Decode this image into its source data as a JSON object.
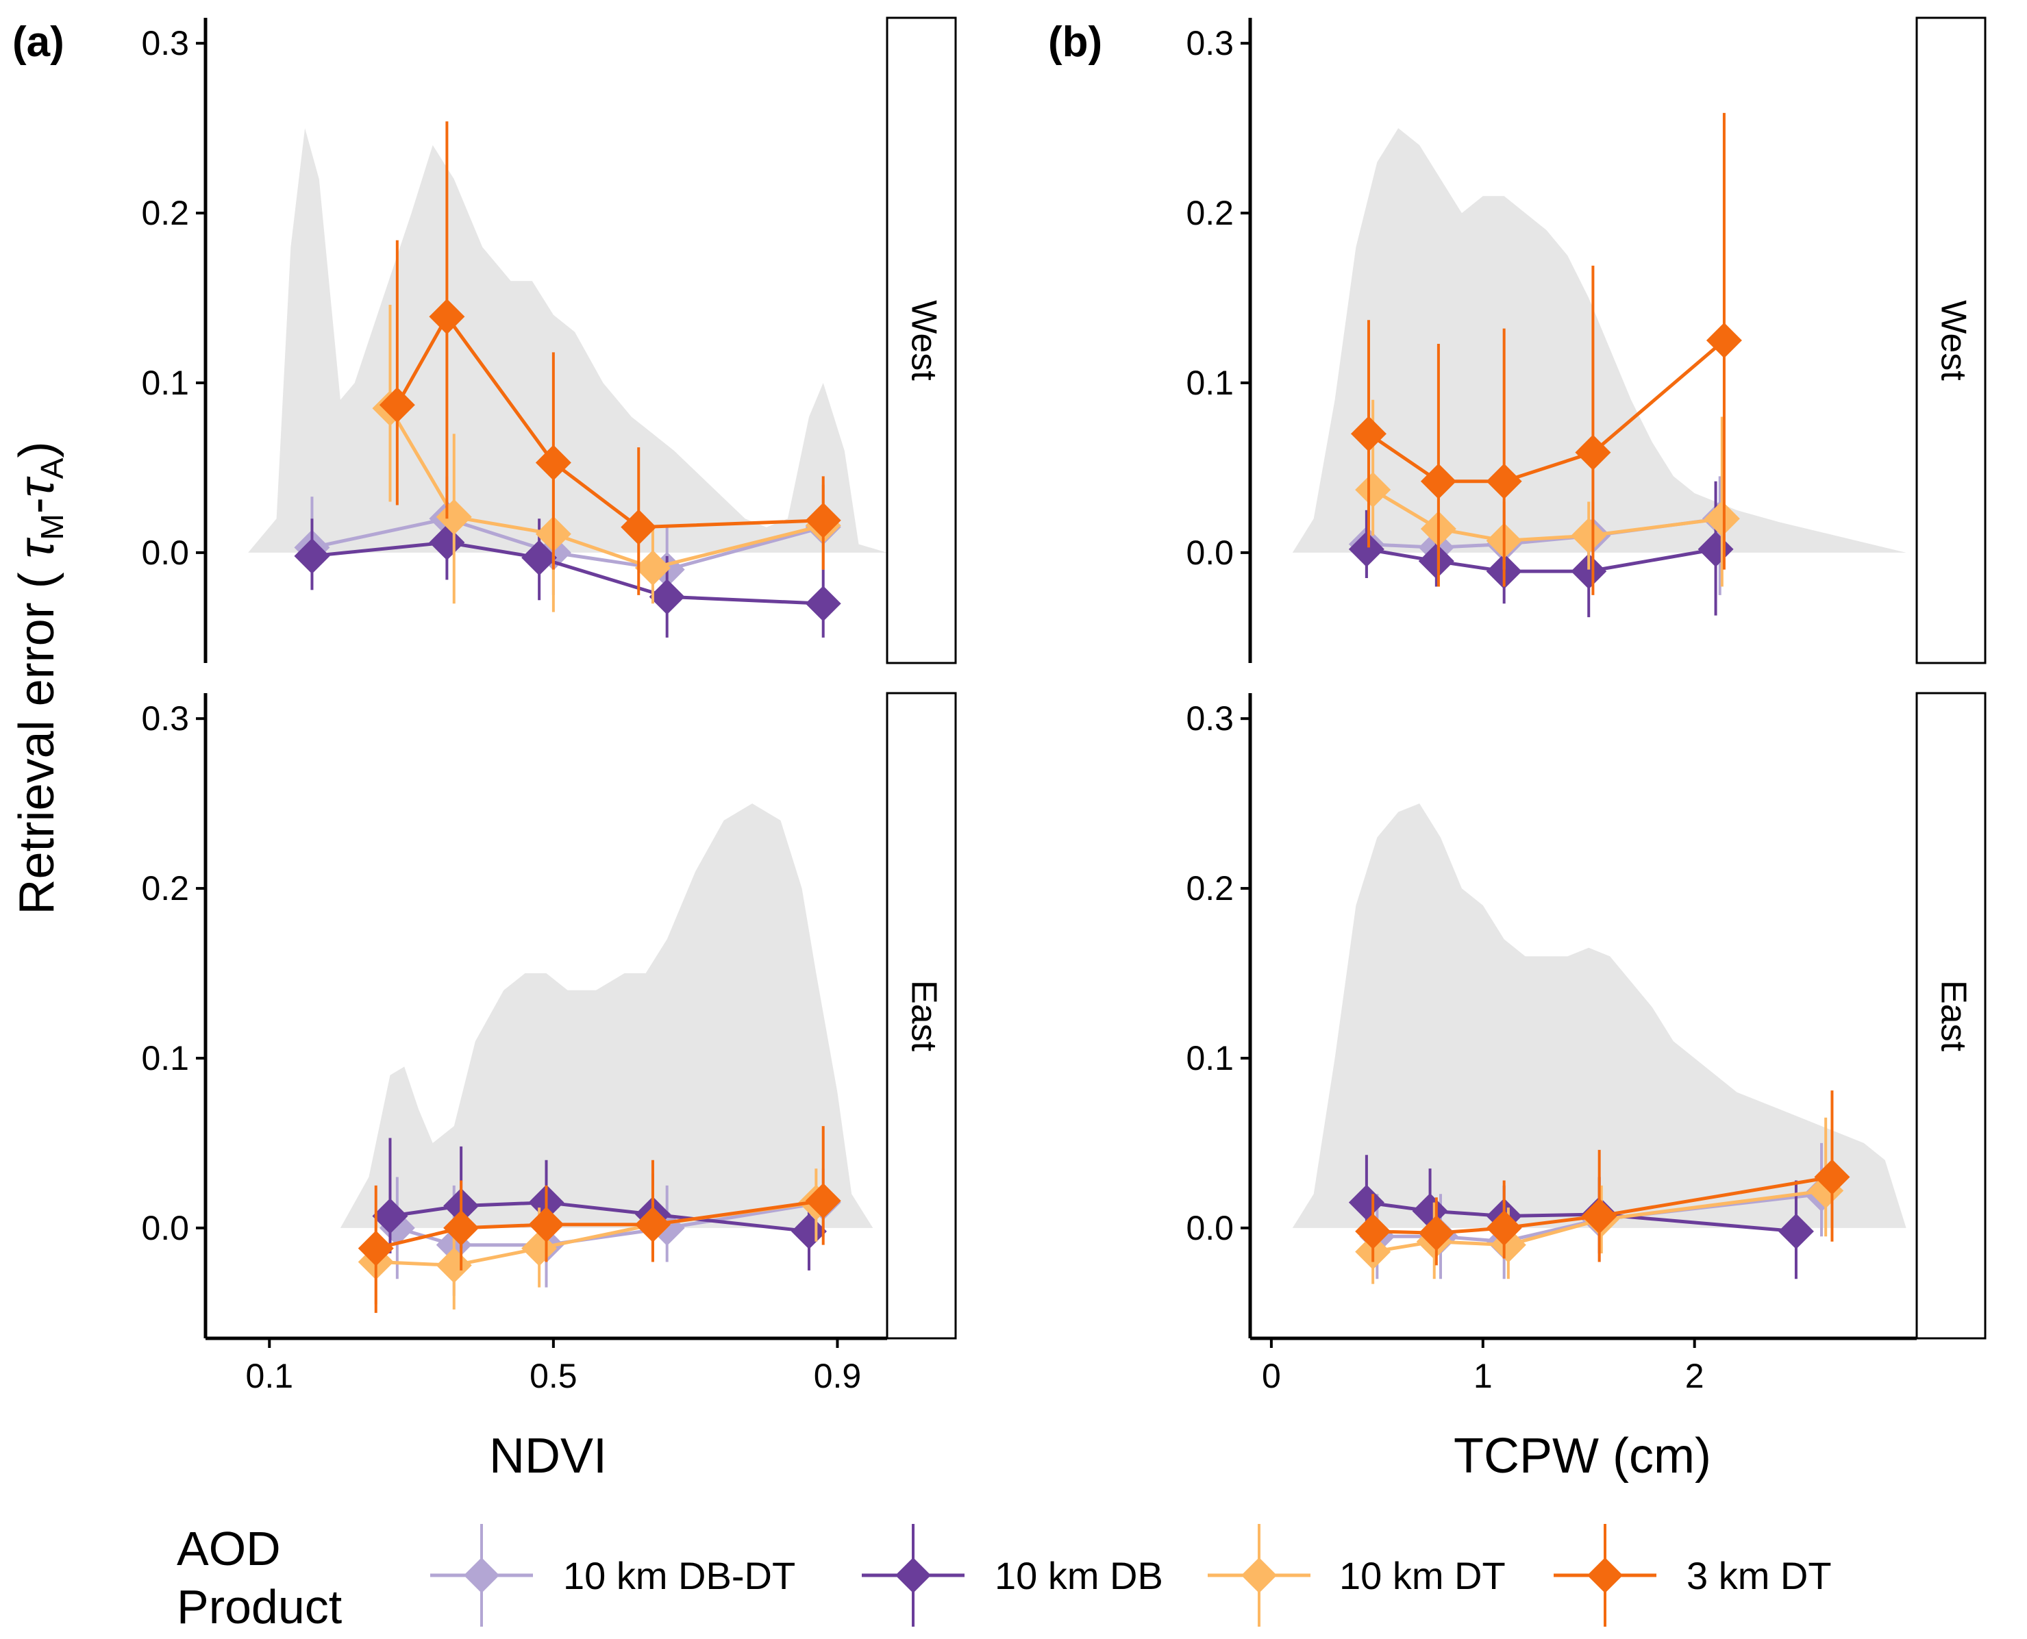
{
  "colors": {
    "series": [
      "#b3a6d4",
      "#6a3d9a",
      "#fdb863",
      "#f46a0e"
    ],
    "density": "#e6e6e6",
    "axis": "#000000"
  },
  "legend": {
    "title_line1": "AOD",
    "title_line2": "Product",
    "items": [
      "10 km DB-DT",
      "10 km DB",
      "10 km DT",
      "3 km DT"
    ],
    "position": "bottom"
  },
  "ylabel": {
    "main": "Retrieval error ( ",
    "tau1": "τ",
    "sub1": "M",
    "dash": "-",
    "tau2": "τ",
    "sub2": "A",
    "close": ")"
  },
  "panels": {
    "a": {
      "letter": "(a)",
      "xlabel": "NDVI",
      "xticks": [
        "0.1",
        "0.5",
        "0.9"
      ]
    },
    "b": {
      "letter": "(b)",
      "xlabel": "TCPW (cm)",
      "xticks": [
        "0",
        "1",
        "2"
      ]
    }
  },
  "strips": {
    "west": "West",
    "east": "East"
  },
  "yticks": [
    "0.0",
    "0.1",
    "0.2",
    "0.3"
  ],
  "chart_data": [
    {
      "type": "line",
      "panel": "a-West",
      "xlabel": "NDVI",
      "ylabel": "Retrieval error ( τM-τA)",
      "xlim": [
        0.01,
        0.97
      ],
      "ylim": [
        -0.065,
        0.315
      ],
      "series": [
        {
          "name": "10 km DB-DT",
          "x": [
            0.16,
            0.35,
            0.5,
            0.66,
            0.88
          ],
          "y": [
            0.003,
            0.02,
            0.0,
            -0.01,
            0.015
          ],
          "ymin": [
            -0.02,
            -0.005,
            -0.025,
            -0.035,
            -0.01
          ],
          "ymax": [
            0.033,
            0.045,
            0.025,
            0.015,
            0.04
          ]
        },
        {
          "name": "10 km DB",
          "x": [
            0.16,
            0.35,
            0.48,
            0.66,
            0.88
          ],
          "y": [
            -0.002,
            0.006,
            -0.003,
            -0.026,
            -0.03
          ],
          "ymin": [
            -0.022,
            -0.016,
            -0.028,
            -0.05,
            -0.05
          ],
          "ymax": [
            0.02,
            0.03,
            0.02,
            -0.002,
            -0.01
          ]
        },
        {
          "name": "10 km DT",
          "x": [
            0.27,
            0.36,
            0.5,
            0.64,
            0.88
          ],
          "y": [
            0.085,
            0.021,
            0.011,
            -0.009,
            0.016
          ],
          "ymin": [
            0.03,
            -0.03,
            -0.035,
            -0.03,
            -0.01
          ],
          "ymax": [
            0.146,
            0.07,
            0.06,
            0.015,
            0.04
          ]
        },
        {
          "name": "3 km DT",
          "x": [
            0.28,
            0.35,
            0.5,
            0.62,
            0.88
          ],
          "y": [
            0.087,
            0.139,
            0.053,
            0.015,
            0.019
          ],
          "ymin": [
            0.028,
            0.02,
            -0.01,
            -0.025,
            -0.01
          ],
          "ymax": [
            0.184,
            0.254,
            0.118,
            0.062,
            0.045
          ]
        }
      ]
    },
    {
      "type": "line",
      "panel": "a-East",
      "xlabel": "NDVI",
      "ylabel": "Retrieval error ( τM-τA)",
      "xlim": [
        0.01,
        0.97
      ],
      "ylim": [
        -0.065,
        0.315
      ],
      "series": [
        {
          "name": "10 km DB-DT",
          "x": [
            0.28,
            0.36,
            0.49,
            0.66,
            0.88
          ],
          "y": [
            0.0,
            -0.01,
            -0.01,
            0.0,
            0.015
          ],
          "ymin": [
            -0.03,
            -0.04,
            -0.035,
            -0.02,
            -0.005
          ],
          "ymax": [
            0.03,
            0.025,
            0.02,
            0.025,
            0.035
          ]
        },
        {
          "name": "10 km DB",
          "x": [
            0.27,
            0.37,
            0.49,
            0.64,
            0.86
          ],
          "y": [
            0.007,
            0.013,
            0.015,
            0.008,
            -0.002
          ],
          "ymin": [
            -0.015,
            -0.012,
            -0.008,
            -0.015,
            -0.025
          ],
          "ymax": [
            0.053,
            0.048,
            0.04,
            0.032,
            0.02
          ]
        },
        {
          "name": "10 km DT",
          "x": [
            0.25,
            0.36,
            0.48,
            0.64,
            0.87
          ],
          "y": [
            -0.02,
            -0.022,
            -0.012,
            0.002,
            0.015
          ],
          "ymin": [
            -0.045,
            -0.048,
            -0.035,
            -0.02,
            -0.008
          ],
          "ymax": [
            0.005,
            0.005,
            0.012,
            0.025,
            0.035
          ]
        },
        {
          "name": "3 km DT",
          "x": [
            0.25,
            0.37,
            0.49,
            0.64,
            0.88
          ],
          "y": [
            -0.012,
            0.0,
            0.002,
            0.002,
            0.016
          ],
          "ymin": [
            -0.05,
            -0.025,
            -0.02,
            -0.02,
            -0.01
          ],
          "ymax": [
            0.025,
            0.028,
            0.025,
            0.04,
            0.06
          ]
        }
      ]
    },
    {
      "type": "line",
      "panel": "b-West",
      "xlabel": "TCPW (cm)",
      "ylabel": "Retrieval error ( τM-τA)",
      "xlim": [
        -0.1,
        3.05
      ],
      "ylim": [
        -0.065,
        0.315
      ],
      "series": [
        {
          "name": "10 km DB-DT",
          "x": [
            0.45,
            0.78,
            1.1,
            1.52,
            2.12
          ],
          "y": [
            0.005,
            0.003,
            0.005,
            0.01,
            0.02
          ],
          "ymin": [
            -0.015,
            -0.015,
            -0.015,
            -0.01,
            -0.025
          ],
          "ymax": [
            0.025,
            0.02,
            0.025,
            0.03,
            0.045
          ]
        },
        {
          "name": "10 km DB",
          "x": [
            0.45,
            0.78,
            1.1,
            1.5,
            2.1
          ],
          "y": [
            0.002,
            -0.005,
            -0.011,
            -0.011,
            0.002
          ],
          "ymin": [
            -0.015,
            -0.02,
            -0.03,
            -0.038,
            -0.037
          ],
          "ymax": [
            0.025,
            0.015,
            0.01,
            0.01,
            0.042
          ]
        },
        {
          "name": "10 km DT",
          "x": [
            0.48,
            0.79,
            1.1,
            1.5,
            2.13
          ],
          "y": [
            0.037,
            0.014,
            0.007,
            0.01,
            0.02
          ],
          "ymin": [
            0.01,
            -0.01,
            -0.01,
            -0.01,
            -0.02
          ],
          "ymax": [
            0.09,
            0.04,
            0.03,
            0.03,
            0.08
          ]
        },
        {
          "name": "3 km DT",
          "x": [
            0.46,
            0.79,
            1.1,
            1.52,
            2.14
          ],
          "y": [
            0.07,
            0.042,
            0.042,
            0.059,
            0.125
          ],
          "ymin": [
            0.003,
            -0.02,
            -0.02,
            -0.025,
            -0.01
          ],
          "ymax": [
            0.137,
            0.123,
            0.132,
            0.169,
            0.259
          ]
        }
      ]
    },
    {
      "type": "line",
      "panel": "b-East",
      "xlabel": "TCPW (cm)",
      "ylabel": "Retrieval error ( τM-τA)",
      "xlim": [
        -0.1,
        3.05
      ],
      "ylim": [
        -0.065,
        0.315
      ],
      "series": [
        {
          "name": "10 km DB-DT",
          "x": [
            0.5,
            0.8,
            1.1,
            1.55,
            2.6
          ],
          "y": [
            -0.005,
            -0.005,
            -0.008,
            0.005,
            0.02
          ],
          "ymin": [
            -0.03,
            -0.03,
            -0.03,
            -0.02,
            -0.005
          ],
          "ymax": [
            0.02,
            0.02,
            0.015,
            0.03,
            0.05
          ]
        },
        {
          "name": "10 km DB",
          "x": [
            0.45,
            0.75,
            1.1,
            1.55,
            2.48
          ],
          "y": [
            0.015,
            0.01,
            0.007,
            0.008,
            -0.002
          ],
          "ymin": [
            -0.008,
            -0.01,
            -0.015,
            -0.015,
            -0.03
          ],
          "ymax": [
            0.043,
            0.035,
            0.025,
            0.03,
            0.028
          ]
        },
        {
          "name": "10 km DT",
          "x": [
            0.48,
            0.77,
            1.12,
            1.56,
            2.62
          ],
          "y": [
            -0.014,
            -0.008,
            -0.01,
            0.005,
            0.022
          ],
          "ymin": [
            -0.033,
            -0.03,
            -0.03,
            -0.015,
            -0.005
          ],
          "ymax": [
            0.005,
            0.015,
            0.012,
            0.025,
            0.065
          ]
        },
        {
          "name": "3 km DT",
          "x": [
            0.48,
            0.78,
            1.1,
            1.55,
            2.65
          ],
          "y": [
            -0.002,
            -0.003,
            0.0,
            0.007,
            0.03
          ],
          "ymin": [
            -0.02,
            -0.022,
            -0.018,
            -0.02,
            -0.008
          ],
          "ymax": [
            0.02,
            0.018,
            0.028,
            0.046,
            0.081
          ]
        }
      ]
    }
  ],
  "density_data": {
    "a-West": {
      "x": [
        0.01,
        0.07,
        0.11,
        0.13,
        0.15,
        0.17,
        0.2,
        0.22,
        0.26,
        0.3,
        0.33,
        0.36,
        0.4,
        0.44,
        0.47,
        0.5,
        0.53,
        0.57,
        0.61,
        0.64,
        0.67,
        0.72,
        0.77,
        0.8,
        0.83,
        0.86,
        0.88,
        0.91,
        0.93,
        0.97
      ],
      "y": [
        0.0,
        0.0,
        0.02,
        0.18,
        0.25,
        0.22,
        0.09,
        0.1,
        0.15,
        0.2,
        0.24,
        0.22,
        0.18,
        0.16,
        0.16,
        0.14,
        0.13,
        0.1,
        0.08,
        0.07,
        0.06,
        0.04,
        0.02,
        0.015,
        0.02,
        0.08,
        0.1,
        0.06,
        0.005,
        0.0
      ]
    },
    "a-East": {
      "x": [
        0.01,
        0.2,
        0.24,
        0.27,
        0.29,
        0.31,
        0.33,
        0.36,
        0.39,
        0.43,
        0.46,
        0.49,
        0.52,
        0.56,
        0.6,
        0.63,
        0.66,
        0.7,
        0.74,
        0.78,
        0.82,
        0.85,
        0.87,
        0.9,
        0.92,
        0.95,
        0.97
      ],
      "y": [
        0.0,
        0.0,
        0.03,
        0.09,
        0.095,
        0.07,
        0.05,
        0.06,
        0.11,
        0.14,
        0.15,
        0.15,
        0.14,
        0.14,
        0.15,
        0.15,
        0.17,
        0.21,
        0.24,
        0.25,
        0.24,
        0.2,
        0.15,
        0.08,
        0.02,
        0.0,
        0.0
      ]
    },
    "b-West": {
      "x": [
        -0.1,
        0.1,
        0.2,
        0.3,
        0.4,
        0.5,
        0.6,
        0.7,
        0.8,
        0.9,
        1.0,
        1.1,
        1.2,
        1.3,
        1.4,
        1.5,
        1.6,
        1.7,
        1.8,
        1.9,
        2.0,
        2.2,
        2.4,
        2.6,
        2.8,
        3.0,
        3.05
      ],
      "y": [
        0.0,
        0.0,
        0.02,
        0.09,
        0.18,
        0.23,
        0.25,
        0.24,
        0.22,
        0.2,
        0.21,
        0.21,
        0.2,
        0.19,
        0.175,
        0.15,
        0.12,
        0.09,
        0.065,
        0.045,
        0.035,
        0.025,
        0.018,
        0.012,
        0.006,
        0.0,
        0.0
      ]
    },
    "b-East": {
      "x": [
        -0.1,
        0.1,
        0.2,
        0.3,
        0.4,
        0.5,
        0.6,
        0.7,
        0.8,
        0.9,
        1.0,
        1.1,
        1.2,
        1.3,
        1.4,
        1.5,
        1.6,
        1.7,
        1.8,
        1.9,
        2.0,
        2.2,
        2.4,
        2.6,
        2.8,
        2.9,
        3.0,
        3.05
      ],
      "y": [
        0.0,
        0.0,
        0.02,
        0.1,
        0.19,
        0.23,
        0.245,
        0.25,
        0.23,
        0.2,
        0.19,
        0.17,
        0.16,
        0.16,
        0.16,
        0.165,
        0.16,
        0.145,
        0.13,
        0.11,
        0.1,
        0.08,
        0.07,
        0.06,
        0.05,
        0.04,
        0.0,
        0.0
      ]
    }
  }
}
